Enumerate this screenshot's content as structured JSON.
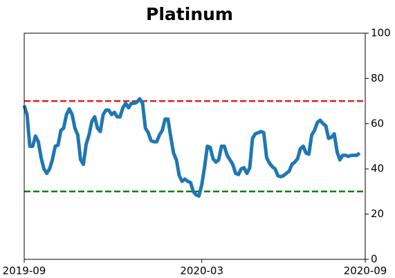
{
  "chart_data": {
    "type": "line",
    "title": "Platinum",
    "categories": [
      "2019-09",
      null,
      null,
      null,
      null,
      null,
      null,
      null,
      null,
      null,
      null,
      null,
      null,
      null,
      null,
      null,
      null,
      null,
      null,
      null,
      null,
      null,
      null,
      null,
      null,
      null,
      null,
      null,
      null,
      null,
      null,
      null,
      null,
      null,
      null,
      null,
      null,
      null,
      null,
      null,
      null,
      null,
      null,
      null,
      null,
      null,
      null,
      null,
      null,
      null,
      null,
      null,
      null,
      null,
      null,
      null,
      null,
      null,
      null,
      null,
      null,
      null,
      null,
      "2020-03",
      null,
      null,
      null,
      null,
      null,
      null,
      null,
      null,
      null,
      null,
      null,
      null,
      null,
      null,
      null,
      null,
      null,
      null,
      null,
      null,
      null,
      null,
      null,
      null,
      null,
      null,
      null,
      null,
      null,
      null,
      null,
      null,
      null,
      null,
      null,
      null,
      null,
      null,
      null,
      null,
      null,
      null,
      null,
      null,
      null,
      null,
      null,
      null,
      null,
      null,
      null,
      null,
      null,
      null,
      null,
      null,
      null,
      "2020-09"
    ],
    "series": [
      {
        "color": "#1f77b4",
        "values": [
          68,
          64,
          50,
          50,
          54.5,
          52,
          45,
          40,
          38,
          40,
          44,
          50,
          50.5,
          57,
          58,
          64,
          66.5,
          64,
          58,
          55,
          44,
          42,
          51,
          55,
          61,
          63,
          58,
          56.5,
          64,
          66,
          66,
          64,
          65,
          63,
          63,
          67,
          69,
          67,
          69,
          69,
          69.5,
          71,
          69,
          58,
          56,
          52.5,
          52,
          52,
          55,
          57,
          62,
          62,
          54,
          47,
          44,
          37,
          34.5,
          35.5,
          34.5,
          34,
          30,
          28.5,
          28,
          33,
          41,
          50,
          49.5,
          44.5,
          43,
          44,
          50,
          50,
          46,
          44,
          42,
          38,
          37.5,
          40,
          40.5,
          38,
          40.5,
          53.5,
          55.5,
          56,
          56.5,
          56,
          45,
          42.5,
          41,
          40,
          37,
          36.5,
          37,
          38,
          39,
          42,
          43,
          44.5,
          49,
          50,
          47,
          46.5,
          55,
          57,
          60.5,
          61.5,
          60,
          59,
          53.5,
          54,
          55.5,
          47.5,
          44,
          46,
          46,
          45.5,
          46,
          46,
          46,
          47,
          null,
          null
        ]
      }
    ],
    "ylim": [
      0,
      100
    ],
    "yticks": [
      0,
      20,
      40,
      60,
      80,
      100
    ],
    "y_axis_side": "right",
    "hlines": [
      {
        "value": 70,
        "color": "#e31a1c"
      },
      {
        "value": 30,
        "color": "#008000"
      }
    ]
  }
}
